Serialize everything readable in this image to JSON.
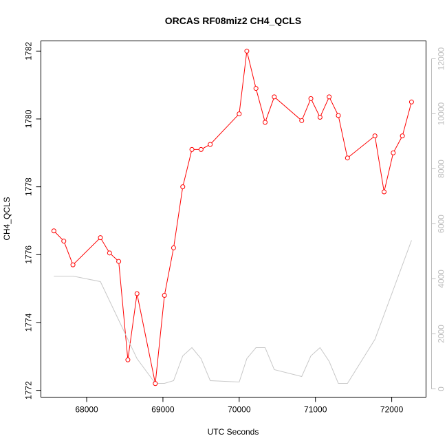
{
  "chart_data": {
    "type": "line",
    "title": "ORCAS RF08miz2 CH4_QCLS",
    "xlabel": "UTC Seconds",
    "ylabel": "CH4_QCLS",
    "xlim": [
      67400,
      72450
    ],
    "ylim": [
      1771.8,
      1782.3
    ],
    "y2lim": [
      -300,
      12650
    ],
    "x_ticks": [
      68000,
      69000,
      70000,
      71000,
      72000
    ],
    "y_ticks": [
      1772,
      1774,
      1776,
      1778,
      1780,
      1782
    ],
    "y2_ticks": [
      0,
      2000,
      4000,
      6000,
      8000,
      10000,
      12000
    ],
    "series": [
      {
        "axis": "left",
        "color": "#ff0000",
        "markers": true,
        "x": [
          67570,
          67700,
          67820,
          68180,
          68300,
          68420,
          68540,
          68660,
          68900,
          69020,
          69140,
          69260,
          69380,
          69500,
          69620,
          70000,
          70100,
          70220,
          70340,
          70460,
          70820,
          70940,
          71060,
          71180,
          71300,
          71420,
          71780,
          71900,
          72020,
          72140,
          72260
        ],
        "y": [
          1776.7,
          1776.4,
          1775.7,
          1776.5,
          1776.05,
          1775.8,
          1772.9,
          1774.85,
          1772.2,
          1774.8,
          1776.2,
          1778.0,
          1779.1,
          1779.1,
          1779.25,
          1780.15,
          1782.0,
          1780.9,
          1779.9,
          1780.65,
          1779.95,
          1780.6,
          1780.05,
          1780.65,
          1780.1,
          1778.85,
          1779.5,
          1777.85,
          1779.0,
          1779.5,
          1780.5
        ]
      },
      {
        "axis": "right",
        "color": "#c8c8c8",
        "markers": false,
        "x": [
          67570,
          67820,
          68180,
          68540,
          68660,
          68900,
          69020,
          69140,
          69260,
          69380,
          69500,
          69620,
          70000,
          70100,
          70220,
          70340,
          70460,
          70820,
          70940,
          71060,
          71180,
          71300,
          71420,
          71780,
          72260
        ],
        "y": [
          4100,
          4100,
          3900,
          1800,
          1100,
          200,
          200,
          300,
          1200,
          1500,
          1100,
          300,
          250,
          1100,
          1500,
          1500,
          700,
          450,
          1200,
          1500,
          1000,
          200,
          200,
          1800,
          5400
        ]
      }
    ]
  }
}
